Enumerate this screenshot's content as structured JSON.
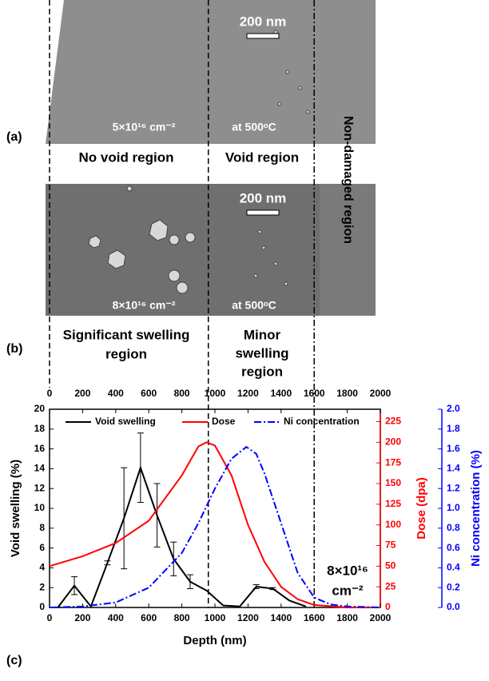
{
  "panels": {
    "a": {
      "label": "(a)",
      "scale_bar": "200 nm",
      "fluence": "5×10¹⁶ cm⁻²",
      "temperature": "at 500ᵒC",
      "regions": [
        "No void region",
        "Void region"
      ]
    },
    "b": {
      "label": "(b)",
      "scale_bar": "200 nm",
      "fluence": "8×10¹⁶ cm⁻²",
      "temperature": "at 500ᵒC",
      "regions": [
        [
          "Significant swelling",
          "region"
        ],
        [
          "Minor",
          "swelling",
          "region"
        ]
      ]
    },
    "side_label": "Non-damaged region",
    "c": {
      "label": "(c)"
    }
  },
  "chart_data": {
    "type": "line",
    "x_label": "Depth (nm)",
    "y_label": "Void swelling (%)",
    "y2_label": "Dose (dpa)",
    "y3_label": "Ni concentration (%)",
    "annotation": [
      "8×10¹⁶",
      "cm⁻²"
    ],
    "xlim": [
      0,
      2000
    ],
    "xticks": [
      0,
      200,
      400,
      600,
      800,
      1000,
      1200,
      1400,
      1600,
      1800,
      2000
    ],
    "ylim": [
      0,
      20
    ],
    "yticks": [
      0,
      2,
      4,
      6,
      8,
      10,
      12,
      14,
      16,
      18,
      20
    ],
    "y2lim": [
      0,
      240
    ],
    "y2ticks": [
      0,
      25,
      50,
      75,
      100,
      125,
      150,
      175,
      200,
      225
    ],
    "y3lim": [
      0,
      2
    ],
    "y3ticks": [
      {
        "value": 0,
        "label": "0.0"
      },
      {
        "value": 0.2,
        "label": "0.2"
      },
      {
        "value": 0.4,
        "label": "0.4"
      },
      {
        "value": 0.6,
        "label": "0.6"
      },
      {
        "value": 0.8,
        "label": "0.8"
      },
      {
        "value": 1,
        "label": "1.0"
      },
      {
        "value": 1.2,
        "label": "1.2"
      },
      {
        "value": 1.4,
        "label": "1.4"
      },
      {
        "value": 1.6,
        "label": "1.6"
      },
      {
        "value": 1.8,
        "label": "1.8"
      },
      {
        "value": 2,
        "label": "2.0"
      }
    ],
    "vlines": [
      960,
      1600
    ],
    "series": [
      {
        "name": "Void swelling",
        "color": "#000000",
        "x": [
          50,
          150,
          250,
          350,
          450,
          550,
          650,
          750,
          850,
          950,
          1050,
          1150,
          1250,
          1350,
          1450,
          1550
        ],
        "values": [
          0,
          2.2,
          0.1,
          4.5,
          9,
          14.1,
          9.3,
          4.9,
          2.6,
          1.7,
          0.2,
          0.1,
          2.1,
          1.9,
          0.7,
          0.1
        ],
        "errors": [
          null,
          0.9,
          null,
          0.2,
          5.1,
          3.5,
          3.2,
          1.7,
          0.7,
          null,
          null,
          null,
          0.2,
          0.1,
          null,
          null
        ]
      },
      {
        "name": "Dose",
        "color": "#ff0000",
        "axis": "y2",
        "x": [
          0,
          200,
          400,
          600,
          800,
          900,
          950,
          1000,
          1100,
          1200,
          1300,
          1400,
          1500,
          1600,
          1800,
          2000
        ],
        "values": [
          50,
          62,
          78,
          105,
          160,
          195,
          200,
          196,
          160,
          100,
          55,
          25,
          10,
          3,
          0,
          0
        ]
      },
      {
        "name": "Ni concentration",
        "color": "#0000ff",
        "axis": "y3",
        "x": [
          0,
          200,
          400,
          600,
          800,
          900,
          1000,
          1100,
          1190,
          1250,
          1300,
          1400,
          1500,
          1600,
          1700,
          1800,
          2000
        ],
        "values": [
          0,
          0.01,
          0.05,
          0.2,
          0.55,
          0.85,
          1.2,
          1.5,
          1.62,
          1.55,
          1.35,
          0.85,
          0.35,
          0.1,
          0.03,
          0.01,
          0
        ]
      }
    ]
  }
}
